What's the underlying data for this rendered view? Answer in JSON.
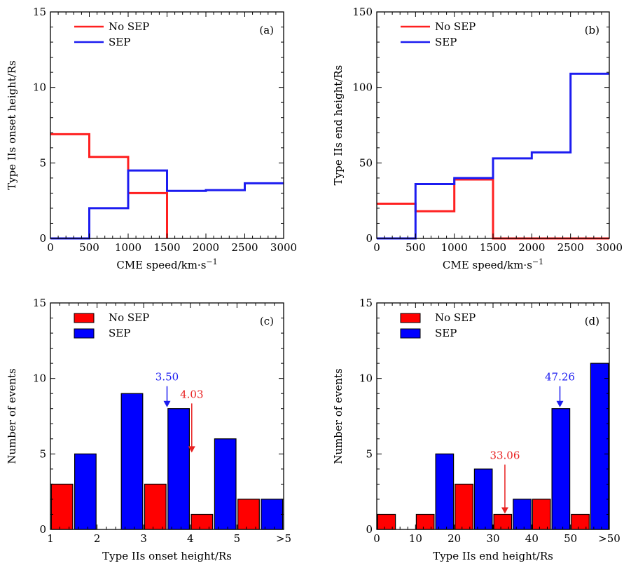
{
  "chart_data": [
    {
      "panel": "(a)",
      "type": "line",
      "step": true,
      "xlabel": "CME speed/km·s",
      "xlabel_sup": "−1",
      "ylabel": "Type IIs onset height/Rs",
      "xlim": [
        0,
        3000
      ],
      "ylim": [
        0,
        15
      ],
      "xticks": [
        0,
        500,
        1000,
        1500,
        2000,
        2500,
        3000
      ],
      "yticks": [
        0,
        5,
        10,
        15
      ],
      "legend": "top-left",
      "series": [
        {
          "name": "No SEP",
          "color": "#ff2020",
          "x": [
            0,
            500,
            1000,
            1500
          ],
          "y": [
            6.9,
            5.4,
            3.0,
            0
          ],
          "end": 1500
        },
        {
          "name": "SEP",
          "color": "#1c1cf0",
          "x": [
            0,
            500,
            1000,
            1500,
            2000,
            2500
          ],
          "y": [
            0,
            2.0,
            4.5,
            3.15,
            3.2,
            3.65
          ],
          "end": 3000
        }
      ]
    },
    {
      "panel": "(b)",
      "type": "line",
      "step": true,
      "xlabel": "CME speed/km·s",
      "xlabel_sup": "−1",
      "ylabel": "Type IIs end height/Rs",
      "xlim": [
        0,
        3000
      ],
      "ylim": [
        0,
        150
      ],
      "xticks": [
        0,
        500,
        1000,
        1500,
        2000,
        2500,
        3000
      ],
      "yticks": [
        0,
        50,
        100,
        150
      ],
      "legend": "top-left",
      "series": [
        {
          "name": "No SEP",
          "color": "#ff2020",
          "x": [
            0,
            500,
            1000,
            1500
          ],
          "y": [
            23,
            18,
            39,
            0
          ],
          "end": 3000
        },
        {
          "name": "SEP",
          "color": "#1c1cf0",
          "x": [
            0,
            500,
            1000,
            1500,
            2000,
            2500
          ],
          "y": [
            0,
            36,
            40,
            53,
            57,
            109
          ],
          "end": 3000
        }
      ]
    },
    {
      "panel": "(c)",
      "type": "bar",
      "xlabel": "Type IIs onset height/Rs",
      "ylabel": "Number of events",
      "xlim": [
        1,
        6
      ],
      "ylim": [
        0,
        15
      ],
      "xtick_labels": [
        "1",
        "2",
        "3",
        "4",
        "5",
        ">5"
      ],
      "yticks": [
        0,
        5,
        10,
        15
      ],
      "legend": "top-left",
      "bin_starts": [
        1,
        2,
        3,
        4,
        5
      ],
      "series": [
        {
          "name": "No SEP",
          "color": "#ff0000",
          "values": [
            3,
            0,
            3,
            1,
            2
          ]
        },
        {
          "name": "SEP",
          "color": "#0000ff",
          "values": [
            5,
            9,
            8,
            6,
            2
          ]
        }
      ],
      "annotations": [
        {
          "text": "3.50",
          "color": "#1c1cf0",
          "x": 3.5,
          "y_tip": 8.0
        },
        {
          "text": "4.03",
          "color": "#e82020",
          "x": 4.03,
          "y_tip": 5.0
        }
      ]
    },
    {
      "panel": "(d)",
      "type": "bar",
      "xlabel": "Type IIs end height/Rs",
      "ylabel": "Number of events",
      "xlim": [
        0,
        60
      ],
      "ylim": [
        0,
        15
      ],
      "xtick_labels": [
        "0",
        "10",
        "20",
        "30",
        "40",
        "50",
        ">50"
      ],
      "yticks": [
        0,
        5,
        10,
        15
      ],
      "legend": "top-left",
      "bin_starts": [
        0,
        10,
        20,
        30,
        40,
        50
      ],
      "series": [
        {
          "name": "No SEP",
          "color": "#ff0000",
          "values": [
            1,
            1,
            3,
            1,
            2,
            1
          ]
        },
        {
          "name": "SEP",
          "color": "#0000ff",
          "values": [
            0,
            5,
            4,
            2,
            8,
            11
          ]
        }
      ],
      "annotations": [
        {
          "text": "47.26",
          "color": "#1c1cf0",
          "x": 47.26,
          "y_tip": 8.0
        },
        {
          "text": "33.06",
          "color": "#e82020",
          "x": 33.06,
          "y_tip": 0.95
        }
      ]
    }
  ]
}
